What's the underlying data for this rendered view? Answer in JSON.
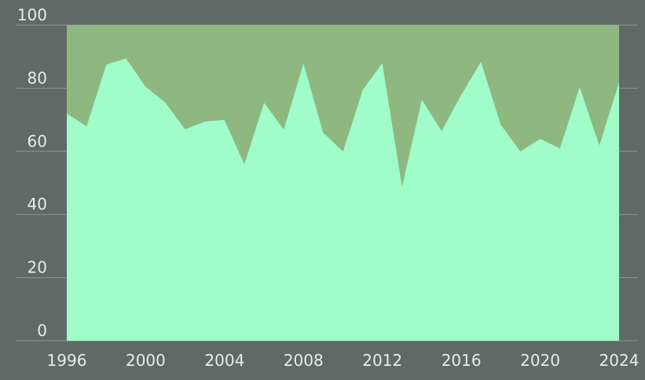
{
  "colors": {
    "background": "#5e6a66",
    "upper_area": "#8fb880",
    "lower_area": "#a0fcc8",
    "grid": "#8c9893",
    "text": "#e8ece9"
  },
  "chart_data": {
    "type": "area",
    "stacked": true,
    "title": "",
    "xlabel": "",
    "ylabel": "",
    "xlim": [
      1996,
      2024
    ],
    "ylim": [
      0,
      100
    ],
    "grid": true,
    "x": [
      1996,
      1997,
      1998,
      1999,
      2000,
      2001,
      2002,
      2003,
      2004,
      2005,
      2006,
      2007,
      2008,
      2009,
      2010,
      2011,
      2012,
      2013,
      2014,
      2015,
      2016,
      2017,
      2018,
      2019,
      2020,
      2021,
      2022,
      2023,
      2024
    ],
    "series": [
      {
        "color": "#a0fcc8",
        "values": [
          72,
          68,
          87.5,
          89.5,
          80.5,
          75.5,
          67,
          69.5,
          70,
          56,
          75.5,
          67,
          88,
          66,
          60,
          79.5,
          88,
          49,
          76.5,
          66.5,
          78,
          88.5,
          68.5,
          60,
          64,
          61,
          80.5,
          62,
          82
        ]
      },
      {
        "color": "#8fb880",
        "values": [
          28,
          32,
          12.5,
          10.5,
          19.5,
          24.5,
          33,
          30.5,
          30,
          44,
          24.5,
          33,
          12,
          34,
          40,
          20.5,
          12,
          51,
          23.5,
          33.5,
          22,
          11.5,
          31.5,
          40,
          36,
          39,
          19.5,
          38,
          18
        ]
      }
    ],
    "x_ticks": [
      "1996",
      "2000",
      "2004",
      "2008",
      "2012",
      "2016",
      "2020",
      "2024"
    ],
    "y_ticks": [
      "0",
      "20",
      "40",
      "60",
      "80",
      "100"
    ]
  }
}
